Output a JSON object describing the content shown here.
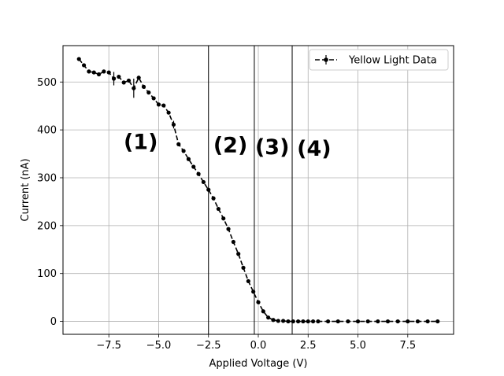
{
  "chart_data": {
    "type": "line",
    "xlabel": "Applied Voltage (V)",
    "ylabel": "Current (nA)",
    "xlim": [
      -9.8,
      9.8
    ],
    "ylim": [
      -27,
      576
    ],
    "xticks": [
      -7.5,
      -5.0,
      -2.5,
      0.0,
      2.5,
      5.0,
      7.5
    ],
    "xtick_labels": [
      "−7.5",
      "−5.0",
      "−2.5",
      "0.0",
      "2.5",
      "5.0",
      "7.5"
    ],
    "yticks": [
      0,
      100,
      200,
      300,
      400,
      500
    ],
    "ytick_labels": [
      "0",
      "100",
      "200",
      "300",
      "400",
      "500"
    ],
    "grid": true,
    "legend_position": "top-right",
    "vlines": [
      -2.5,
      -0.2,
      1.7
    ],
    "region_labels": [
      {
        "text": "(1)",
        "x": -5.9,
        "y": 360
      },
      {
        "text": "(2)",
        "x": -1.4,
        "y": 353
      },
      {
        "text": "(3)",
        "x": 0.7,
        "y": 349
      },
      {
        "text": "(4)",
        "x": 2.8,
        "y": 346
      }
    ],
    "series": [
      {
        "name": "Yellow Light Data",
        "color": "#000000",
        "style": "dashed",
        "marker": "circle",
        "x": [
          -9.0,
          -8.75,
          -8.5,
          -8.25,
          -8.0,
          -7.75,
          -7.5,
          -7.25,
          -7.0,
          -6.75,
          -6.5,
          -6.25,
          -6.0,
          -5.75,
          -5.5,
          -5.25,
          -5.0,
          -4.75,
          -4.5,
          -4.25,
          -4.0,
          -3.75,
          -3.5,
          -3.25,
          -3.0,
          -2.75,
          -2.5,
          -2.25,
          -2.0,
          -1.75,
          -1.5,
          -1.25,
          -1.0,
          -0.75,
          -0.5,
          -0.25,
          0.0,
          0.25,
          0.5,
          0.75,
          1.0,
          1.25,
          1.5,
          1.75,
          2.0,
          2.25,
          2.5,
          2.75,
          3.0,
          3.5,
          4.0,
          4.5,
          5.0,
          5.5,
          6.0,
          6.5,
          7.0,
          7.5,
          8.0,
          8.5,
          9.0
        ],
        "y": [
          548,
          535,
          522,
          520,
          516,
          522,
          520,
          507,
          511,
          499,
          503,
          487,
          509,
          490,
          478,
          466,
          453,
          451,
          436,
          411,
          370,
          356,
          339,
          323,
          308,
          291,
          275,
          257,
          235,
          215,
          193,
          166,
          141,
          112,
          84,
          62,
          40,
          21,
          8,
          3,
          1,
          1,
          0,
          0,
          0,
          0,
          0,
          0,
          0,
          0,
          0,
          0,
          0,
          0,
          0,
          0,
          0,
          0,
          0,
          0,
          0
        ],
        "yerr": [
          0,
          0,
          0,
          0,
          0,
          0,
          0,
          14,
          0,
          0,
          0,
          20,
          0,
          0,
          0,
          0,
          0,
          0,
          0,
          8,
          0,
          0,
          0,
          0,
          0,
          0,
          0,
          0,
          0,
          0,
          0,
          0,
          0,
          0,
          0,
          0,
          0,
          0,
          0,
          0,
          0,
          0,
          0,
          0,
          0,
          0,
          0,
          0,
          0,
          0,
          0,
          0,
          0,
          0,
          0,
          0,
          0,
          0,
          0,
          0,
          0
        ]
      }
    ]
  }
}
